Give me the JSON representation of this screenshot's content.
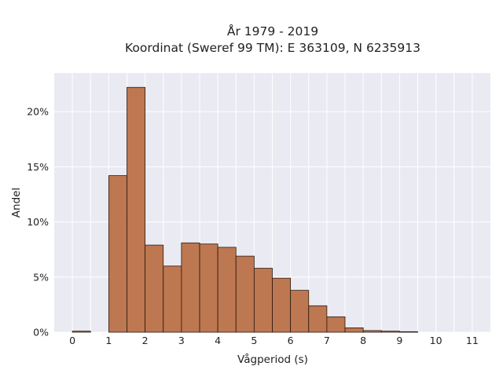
{
  "chart_data": {
    "type": "bar",
    "title": "År 1979 - 2019",
    "subtitle": "Koordinat (Sweref 99 TM): E 363109, N 6235913",
    "xlabel": "Vågperiod (s)",
    "ylabel": "Andel",
    "xlim": [
      -0.5,
      11.5
    ],
    "ylim": [
      0,
      0.235
    ],
    "x_ticks": [
      0,
      1,
      2,
      3,
      4,
      5,
      6,
      7,
      8,
      9,
      10,
      11
    ],
    "y_ticks": [
      0,
      0.05,
      0.1,
      0.15,
      0.2
    ],
    "y_tick_labels": [
      "0%",
      "5%",
      "10%",
      "15%",
      "20%"
    ],
    "grid": true,
    "bin_width": 0.5,
    "bins": [
      {
        "start": 0.0,
        "value": 0.001
      },
      {
        "start": 0.5,
        "value": 0.0
      },
      {
        "start": 1.0,
        "value": 0.142
      },
      {
        "start": 1.5,
        "value": 0.222
      },
      {
        "start": 2.0,
        "value": 0.079
      },
      {
        "start": 2.5,
        "value": 0.06
      },
      {
        "start": 3.0,
        "value": 0.081
      },
      {
        "start": 3.5,
        "value": 0.08
      },
      {
        "start": 4.0,
        "value": 0.077
      },
      {
        "start": 4.5,
        "value": 0.069
      },
      {
        "start": 5.0,
        "value": 0.058
      },
      {
        "start": 5.5,
        "value": 0.049
      },
      {
        "start": 6.0,
        "value": 0.038
      },
      {
        "start": 6.5,
        "value": 0.024
      },
      {
        "start": 7.0,
        "value": 0.014
      },
      {
        "start": 7.5,
        "value": 0.004
      },
      {
        "start": 8.0,
        "value": 0.0015
      },
      {
        "start": 8.5,
        "value": 0.001
      },
      {
        "start": 9.0,
        "value": 0.0005
      }
    ],
    "color": "#b86a3f"
  }
}
